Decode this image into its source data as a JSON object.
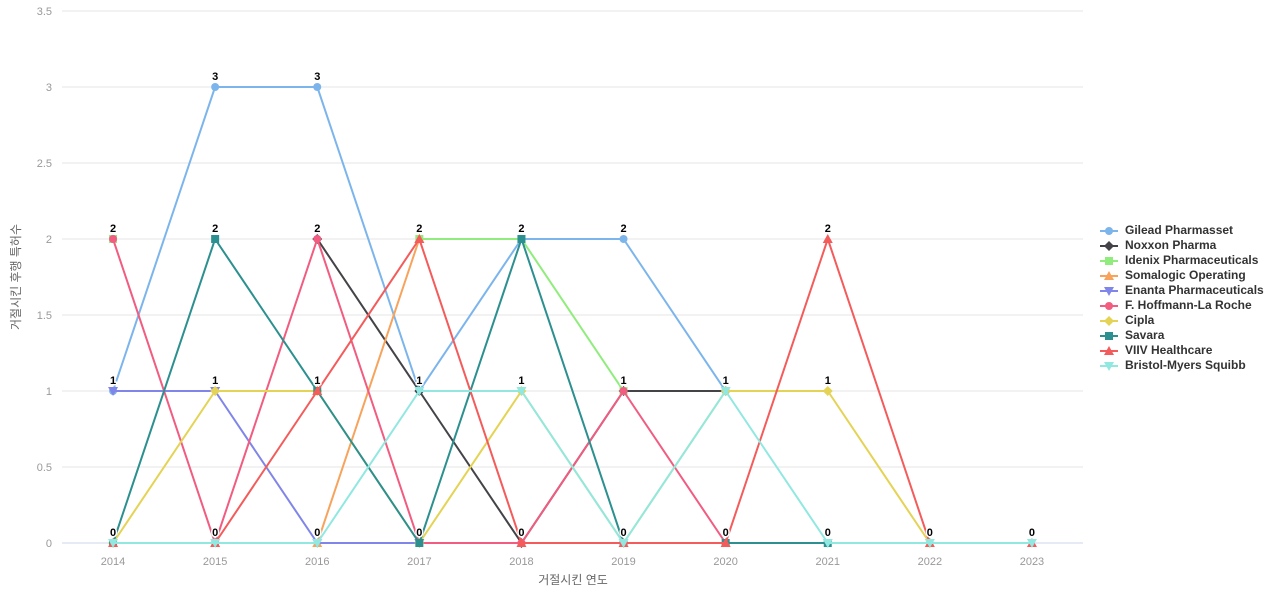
{
  "chart_data": {
    "type": "line",
    "title": "",
    "xlabel": "거절시킨 연도",
    "ylabel": "거절시킨 후행 특허수",
    "categories": [
      "2014",
      "2015",
      "2016",
      "2017",
      "2018",
      "2019",
      "2020",
      "2021",
      "2022",
      "2023"
    ],
    "y_ticks": [
      "0",
      "0.5",
      "1",
      "1.5",
      "2",
      "2.5",
      "3",
      "3.5"
    ],
    "ylim": [
      0,
      3.5
    ],
    "grid": "horizontal",
    "legend_position": "right",
    "data_labels_shown": true,
    "series": [
      {
        "name": "Gilead Pharmasset",
        "color": "#7cb5ec",
        "marker": "circle",
        "values": [
          1,
          3,
          3,
          1,
          2,
          2,
          1,
          null,
          null,
          null
        ]
      },
      {
        "name": "Noxxon Pharma",
        "color": "#434348",
        "marker": "diamond",
        "values": [
          null,
          null,
          2,
          1,
          0,
          1,
          1,
          null,
          null,
          null
        ]
      },
      {
        "name": "Idenix Pharmaceuticals",
        "color": "#90ed7d",
        "marker": "square",
        "values": [
          2,
          null,
          null,
          2,
          2,
          1,
          null,
          null,
          null,
          null
        ]
      },
      {
        "name": "Somalogic Operating",
        "color": "#f7a35c",
        "marker": "triangle",
        "values": [
          null,
          null,
          0,
          2,
          null,
          null,
          null,
          null,
          null,
          null
        ]
      },
      {
        "name": "Enanta Pharmaceuticals",
        "color": "#8085e9",
        "marker": "triangle-down",
        "values": [
          1,
          1,
          0,
          0,
          null,
          null,
          null,
          null,
          null,
          null
        ]
      },
      {
        "name": "F. Hoffmann-La Roche",
        "color": "#f15c80",
        "marker": "circle",
        "values": [
          2,
          0,
          2,
          0,
          0,
          1,
          0,
          null,
          null,
          null
        ]
      },
      {
        "name": "Cipla",
        "color": "#e4d354",
        "marker": "diamond",
        "values": [
          0,
          1,
          1,
          0,
          1,
          0,
          1,
          1,
          0,
          null
        ]
      },
      {
        "name": "Savara",
        "color": "#2b908f",
        "marker": "square",
        "values": [
          0,
          2,
          1,
          0,
          2,
          0,
          0,
          0,
          null,
          null
        ]
      },
      {
        "name": "VIIV Healthcare",
        "color": "#f45b5b",
        "marker": "triangle",
        "values": [
          0,
          0,
          1,
          2,
          0,
          0,
          0,
          2,
          0,
          0
        ]
      },
      {
        "name": "Bristol-Myers Squibb",
        "color": "#91e8e1",
        "marker": "triangle-down",
        "values": [
          0,
          0,
          0,
          1,
          1,
          0,
          1,
          0,
          0,
          0
        ]
      }
    ]
  },
  "style": {
    "grid_color": "#e6e6e6",
    "axis_line_color": "#ccd6eb",
    "tick_label_color": "#999999",
    "axis_title_color": "#666666",
    "legend_text_color": "#333333",
    "background": "#ffffff"
  }
}
